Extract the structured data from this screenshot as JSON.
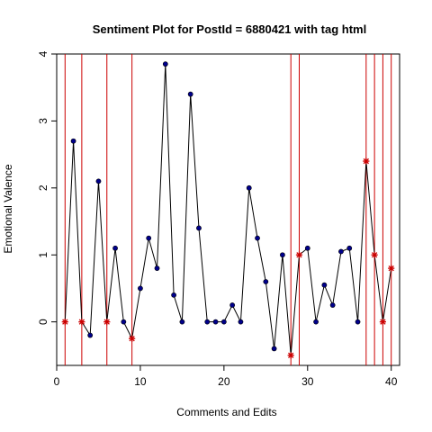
{
  "chart_data": {
    "type": "line",
    "title": "Sentiment Plot for PostId =  6880421  with tag  html",
    "xlabel": "Comments and Edits",
    "ylabel": "Emotional Valence",
    "xlim": [
      0,
      41
    ],
    "ylim": [
      -0.65,
      4.0
    ],
    "x_ticks": [
      0,
      10,
      20,
      30,
      40
    ],
    "y_ticks": [
      0,
      1,
      2,
      3,
      4
    ],
    "grid": false,
    "series_color": "#000000",
    "point_color": "#00008b",
    "edit_marker_color": "#cc0000",
    "vline_color": "#cc0000",
    "x": [
      1,
      2,
      3,
      4,
      5,
      6,
      7,
      8,
      9,
      10,
      11,
      12,
      13,
      14,
      15,
      16,
      17,
      18,
      19,
      20,
      21,
      22,
      23,
      24,
      25,
      26,
      27,
      28,
      29,
      30,
      31,
      32,
      33,
      34,
      35,
      36,
      37,
      38,
      39,
      40
    ],
    "values": [
      0,
      2.7,
      0,
      -0.2,
      2.1,
      0,
      1.1,
      0,
      -0.25,
      0.5,
      1.25,
      0.8,
      3.85,
      0.4,
      0,
      3.4,
      1.4,
      0,
      0,
      0,
      0.25,
      0,
      2,
      1.25,
      0.6,
      -0.4,
      1,
      -0.5,
      1,
      1.1,
      0,
      0.55,
      0.25,
      1.05,
      1.1,
      0,
      2.4,
      1,
      0,
      0.8
    ],
    "edit_points": [
      1,
      3,
      6,
      9,
      28,
      29,
      37,
      38,
      39,
      40
    ],
    "vertical_lines": [
      1,
      3,
      6,
      9,
      28,
      29,
      37,
      38,
      39,
      40
    ]
  }
}
